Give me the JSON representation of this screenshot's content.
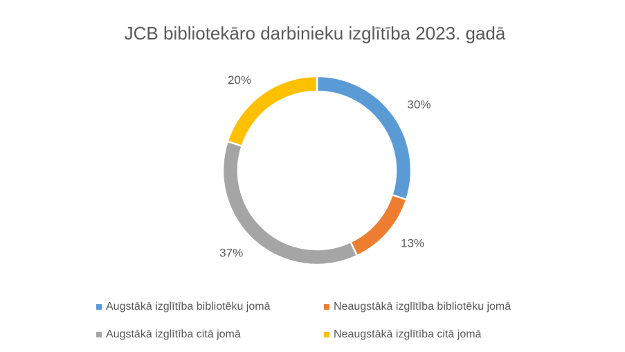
{
  "chart_data": {
    "type": "donut",
    "title": "JCB bibliotekāro darbinieku izglītība 2023. gadā",
    "categories": [
      "Augstākā izglītība bibliotēku jomā",
      "Neaugstākā izglītība bibliotēku jomā",
      "Augstākā izglītība citā jomā",
      "Neaugstākā izglītība citā jomā"
    ],
    "values": [
      30,
      13,
      37,
      20
    ],
    "value_labels": [
      "30%",
      "13%",
      "37%",
      "20%"
    ],
    "colors": [
      "#5b9bd5",
      "#ed7d31",
      "#a5a5a5",
      "#ffc000"
    ],
    "legend": "bottom"
  }
}
